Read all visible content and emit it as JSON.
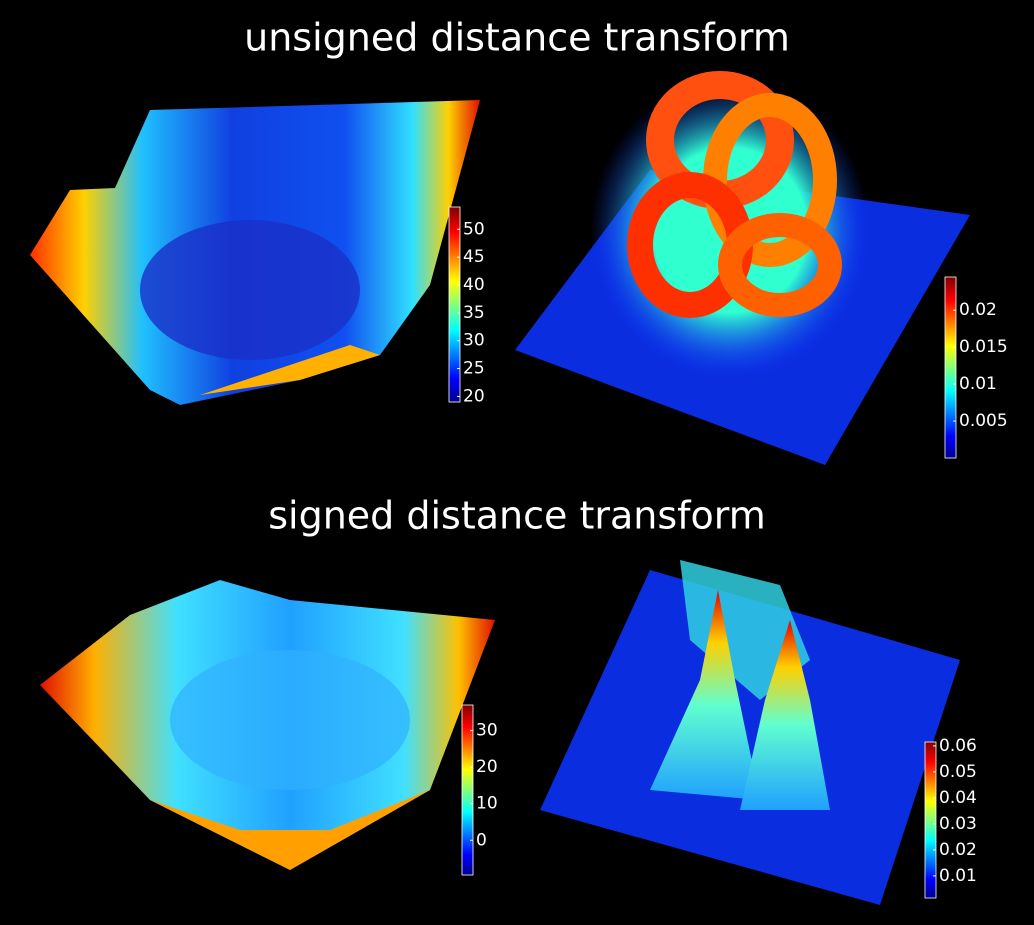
{
  "sections": [
    {
      "title": "unsigned distance transform",
      "panels": [
        {
          "colorbar": {
            "lim": [
              19,
              54
            ],
            "ticks": [
              20,
              25,
              30,
              35,
              40,
              45,
              50
            ]
          }
        },
        {
          "colorbar": {
            "lim": [
              0,
              0.0245
            ],
            "ticks": [
              0.005,
              0.01,
              0.015,
              0.02
            ]
          }
        }
      ]
    },
    {
      "title": "signed distance transform",
      "panels": [
        {
          "colorbar": {
            "lim": [
              -9.5,
              37
            ],
            "ticks": [
              0,
              10,
              20,
              30
            ]
          }
        },
        {
          "colorbar": {
            "lim": [
              0.0015,
              0.0615
            ],
            "ticks": [
              0.01,
              0.02,
              0.03,
              0.04,
              0.05,
              0.06
            ]
          }
        }
      ]
    }
  ]
}
